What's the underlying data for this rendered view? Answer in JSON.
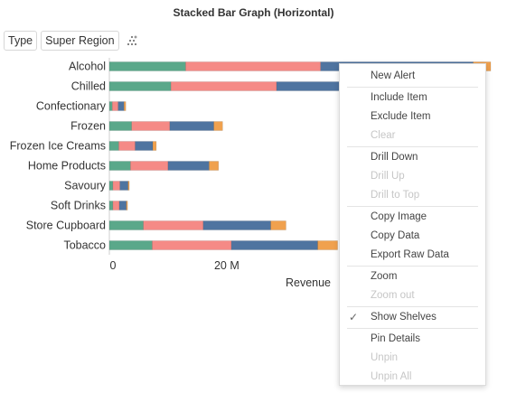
{
  "title": "Stacked Bar Graph (Horizontal)",
  "shelf": {
    "type_label": "Type",
    "region_label": "Super Region",
    "icon": "scatter-dots-icon"
  },
  "colors": {
    "s1": "#5aa88a",
    "s2": "#f58a86",
    "s3": "#4f74a0",
    "s4": "#f0a14e"
  },
  "chart_data": {
    "type": "bar",
    "orientation": "horizontal",
    "stacked": true,
    "categories": [
      "Alcohol",
      "Chilled",
      "Confectionary",
      "Frozen",
      "Frozen Ice Creams",
      "Home Products",
      "Savoury",
      "Soft Drinks",
      "Store Cupboard",
      "Tobacco"
    ],
    "series": [
      {
        "values": [
          13.0,
          10.5,
          0.5,
          3.8,
          1.6,
          3.6,
          0.6,
          0.6,
          5.8,
          7.3
        ]
      },
      {
        "values": [
          23.0,
          18.0,
          1.0,
          6.5,
          2.8,
          6.4,
          1.2,
          1.1,
          10.2,
          13.5
        ]
      },
      {
        "values": [
          26.0,
          19.5,
          1.0,
          7.5,
          3.0,
          7.0,
          1.4,
          1.2,
          11.5,
          14.7
        ]
      },
      {
        "values": [
          3.0,
          2.5,
          0.3,
          1.5,
          0.6,
          1.6,
          0.2,
          0.2,
          2.6,
          3.4
        ]
      }
    ],
    "xlabel": "Revenue",
    "xlim": [
      0,
      67
    ],
    "x_ticks": [
      0,
      20
    ],
    "x_tick_labels": [
      "0",
      "20 M"
    ],
    "x_partial_tick": "4"
  },
  "menu": {
    "items": [
      {
        "label": "New Alert",
        "enabled": true
      },
      {
        "sep": true
      },
      {
        "label": "Include Item",
        "enabled": true
      },
      {
        "label": "Exclude Item",
        "enabled": true
      },
      {
        "label": "Clear",
        "enabled": false
      },
      {
        "sep": true
      },
      {
        "label": "Drill Down",
        "enabled": true
      },
      {
        "label": "Drill Up",
        "enabled": false
      },
      {
        "label": "Drill to Top",
        "enabled": false
      },
      {
        "sep": true
      },
      {
        "label": "Copy Image",
        "enabled": true
      },
      {
        "label": "Copy Data",
        "enabled": true
      },
      {
        "label": "Export Raw Data",
        "enabled": true
      },
      {
        "sep": true
      },
      {
        "label": "Zoom",
        "enabled": true
      },
      {
        "label": "Zoom out",
        "enabled": false
      },
      {
        "sep": true
      },
      {
        "label": "Show Shelves",
        "enabled": true,
        "checked": true
      },
      {
        "sep": true
      },
      {
        "label": "Pin Details",
        "enabled": true
      },
      {
        "label": "Unpin",
        "enabled": false
      },
      {
        "label": "Unpin All",
        "enabled": false
      }
    ]
  }
}
